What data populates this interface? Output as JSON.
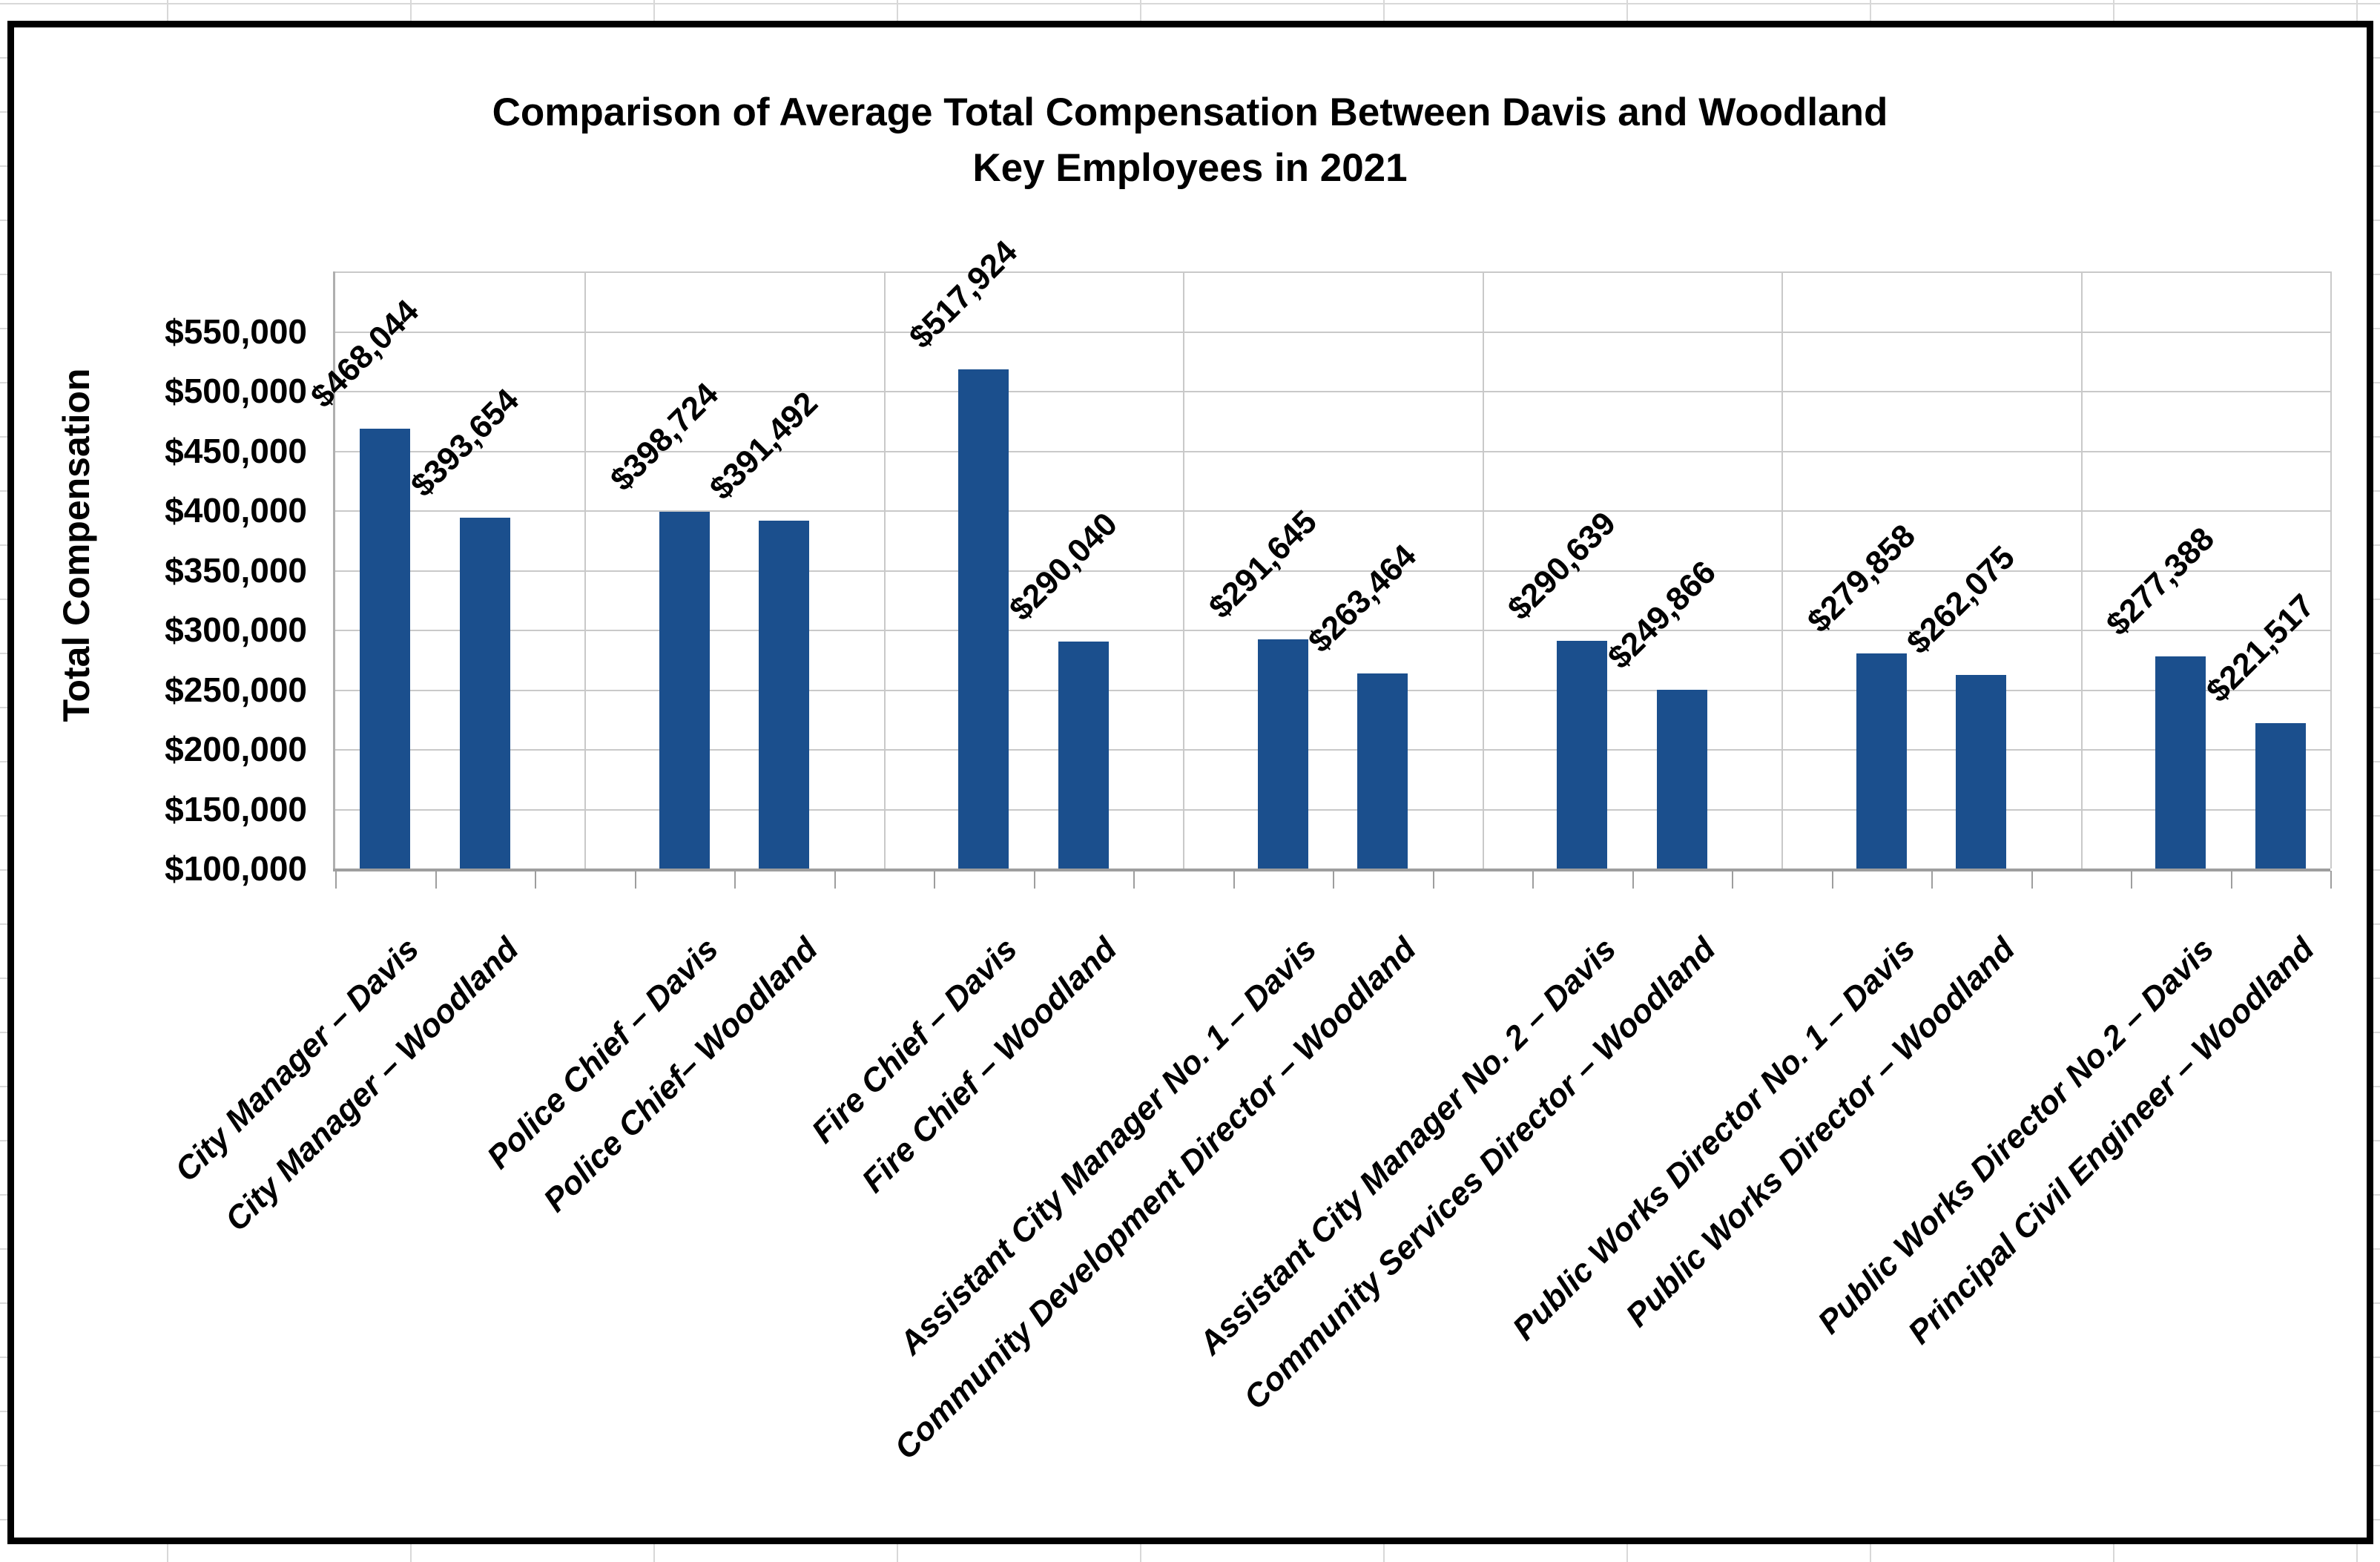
{
  "sheet": {
    "gridline_color": "#D8D8D8",
    "background_color": "#FFFFFF"
  },
  "chart": {
    "border_color": "#000000",
    "background_color": "#FFFFFF"
  },
  "chart_data": {
    "type": "bar",
    "title": "Comparison of Average Total Compensation Between Davis and Woodland Key Employees in 2021",
    "title_lines": [
      "Comparison of Average Total Compensation Between Davis and Woodland",
      "Key Employees in 2021"
    ],
    "xlabel": "",
    "ylabel": "Total Compensation",
    "legend": "none",
    "grid": true,
    "bar_color": "#1B4F8D",
    "ylim": [
      100000,
      600000
    ],
    "y_tick_step": 50000,
    "y_ticks": [
      {
        "label": "$550,000",
        "value": 550000
      },
      {
        "label": "$500,000",
        "value": 500000
      },
      {
        "label": "$450,000",
        "value": 450000
      },
      {
        "label": "$400,000",
        "value": 400000
      },
      {
        "label": "$350,000",
        "value": 350000
      },
      {
        "label": "$300,000",
        "value": 300000
      },
      {
        "label": "$250,000",
        "value": 250000
      },
      {
        "label": "$200,000",
        "value": 200000
      },
      {
        "label": "$150,000",
        "value": 150000
      },
      {
        "label": "$100,000",
        "value": 100000
      }
    ],
    "categories": [
      "City Manager – Davis",
      "City Manager – Woodland",
      "Police Chief – Davis",
      "Police Chief– Woodland",
      "Fire Chief – Davis",
      "Fire Chief – Woodland",
      "Assistant City Manager No. 1 – Davis",
      "Community Development Director – Woodland",
      "Assistant City Manager No. 2 – Davis",
      "Community Services Director – Woodland",
      "Public Works Director No. 1 – Davis",
      "Public Works Director – Woodland",
      "Public Works Director No.2 – Davis",
      "Principal Civil Engineer – Woodland"
    ],
    "values": [
      468044,
      393654,
      398724,
      391492,
      517924,
      290040,
      291645,
      263464,
      290639,
      249866,
      279858,
      262075,
      277388,
      221517
    ],
    "value_labels": [
      "$468,044",
      "$393,654",
      "$398,724",
      "$391,492",
      "$517,924",
      "$290,040",
      "$291,645",
      "$263,464",
      "$290,639",
      "$249,866",
      "$279,858",
      "$262,075",
      "$277,388",
      "$221,517"
    ]
  }
}
